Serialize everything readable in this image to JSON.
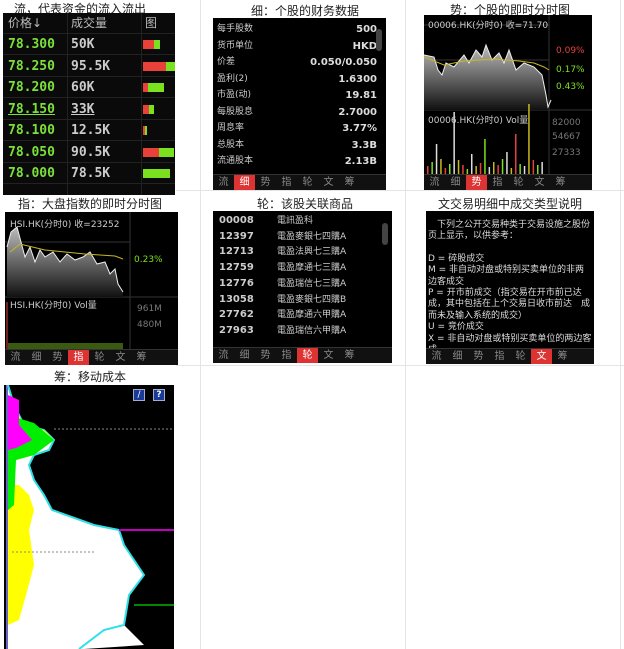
{
  "captions": {
    "flow": "流，代表资金的流入流出",
    "detail": "细：个股的财务数据",
    "trend": "势：个股的即时分时图",
    "index": "指：大盘指数的即时分时图",
    "warrant": "轮：该股关联商品",
    "text": "文交易明细中成交类型说明",
    "chips": "筹：移动成本"
  },
  "tabs": [
    "流",
    "细",
    "势",
    "指",
    "轮",
    "文",
    "筹"
  ],
  "flow": {
    "headers": [
      "价格↓",
      "成交量",
      "图"
    ],
    "rows": [
      {
        "price": "78.300",
        "volume": "50K",
        "red": 0.65,
        "green": 0.35
      },
      {
        "price": "78.250",
        "volume": "95.5K",
        "red": 0.7,
        "green": 0.3
      },
      {
        "price": "78.200",
        "volume": "60K",
        "red": 0.25,
        "green": 0.75
      },
      {
        "price": "78.150",
        "volume": "33K",
        "red": 0.55,
        "green": 0.45,
        "underline": true
      },
      {
        "price": "78.100",
        "volume": "12.5K",
        "red": 0.5,
        "green": 0.5
      },
      {
        "price": "78.050",
        "volume": "90.5K",
        "red": 0.5,
        "green": 0.5
      },
      {
        "price": "78.000",
        "volume": "78.5K",
        "red": 0,
        "green": 1
      }
    ],
    "colors": {
      "price": "#7be03a",
      "red": "#e8413a",
      "green": "#7be01e"
    }
  },
  "detail": {
    "rows": [
      {
        "label": "每手股数",
        "value": "500"
      },
      {
        "label": "货币单位",
        "value": "HKD"
      },
      {
        "label": "价差",
        "value": "0.050/0.050"
      },
      {
        "label": "盈利(2)",
        "value": "1.6300"
      },
      {
        "label": "市盈(动)",
        "value": "19.81"
      },
      {
        "label": "每股股息",
        "value": "2.7000"
      },
      {
        "label": "周息率",
        "value": "3.77%"
      },
      {
        "label": "总股本",
        "value": "3.3B"
      },
      {
        "label": "流通股本",
        "value": "2.13B"
      }
    ]
  },
  "trend": {
    "title": "00006.HK(分时0) 收=71.70",
    "pct": [
      "0.09%",
      "0.17%",
      "0.43%"
    ],
    "vol_title": "00006.HK(分时0) Vol量",
    "vol_ticks": [
      "82000",
      "54667",
      "27333"
    ]
  },
  "index": {
    "title": "HSI.HK(分时0) 收=23252",
    "pct": "0.23%",
    "vol_title": "HSI.HK(分时0) Vol量",
    "vol_ticks": [
      "961M",
      "480M"
    ]
  },
  "warrant": {
    "rows": [
      {
        "code": "00008",
        "name": "電訊盈科"
      },
      {
        "code": "12397",
        "name": "電盈麥銀七四購A"
      },
      {
        "code": "12713",
        "name": "電盈法興七三購A"
      },
      {
        "code": "12759",
        "name": "電盈摩通七三購A"
      },
      {
        "code": "12776",
        "name": "電盈瑞信七三購A"
      },
      {
        "code": "13058",
        "name": "電盈麥銀七四購B"
      },
      {
        "code": "27762",
        "name": "電盈摩通六甲購A"
      },
      {
        "code": "27963",
        "name": "電盈瑞信六甲購A"
      }
    ]
  },
  "text": {
    "lines": [
      "　下列之公开交易种类于交易设施之股份页上显示，以供参考：",
      "",
      "D = 碎股成交",
      "M = 非自动对盘或特别买卖单位的非两边客成交",
      "P = 开市前成交（指交易在开市前已达成，其中包括在上个交易日收市前达　成而未及输入系统的成交）",
      "U = 竞价成交",
      "X = 非自动对盘或特别买卖单位的两边客成"
    ]
  },
  "chips": {
    "edit_icon": "pencil-icon",
    "help_label": "?"
  }
}
